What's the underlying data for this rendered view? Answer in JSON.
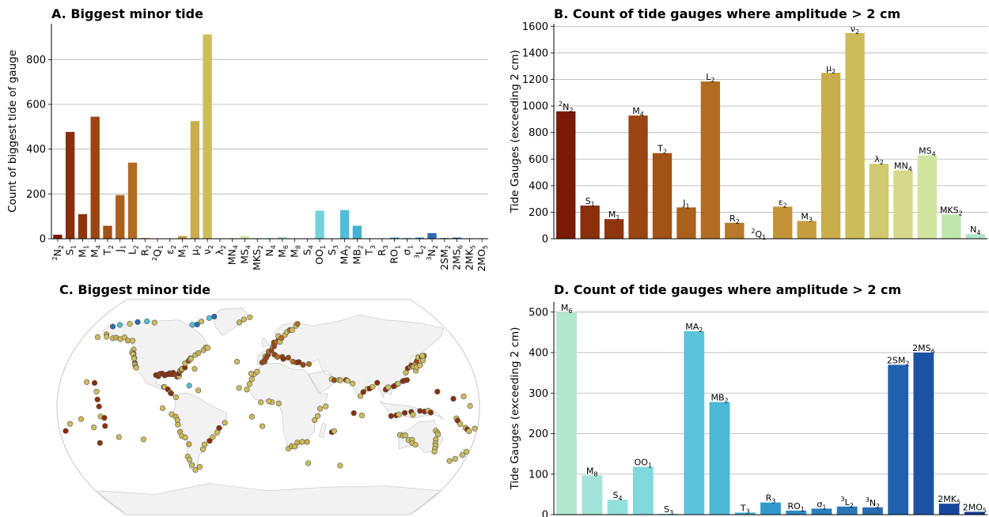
{
  "panels": {
    "A": {
      "title": "A. Biggest minor tide"
    },
    "B": {
      "title": "B. Count of tide gauges where amplitude > 2 cm"
    },
    "C": {
      "title": "C. Biggest minor tide"
    },
    "D": {
      "title": "D. Count of tide gauges where amplitude > 2 cm"
    }
  },
  "chart_data": [
    {
      "id": "A",
      "type": "bar",
      "title": "A. Biggest minor tide",
      "xlabel": "",
      "ylabel": "Count of biggest tide of gauge",
      "ylim": [
        0,
        960
      ],
      "yticks": [
        0,
        200,
        400,
        600,
        800
      ],
      "grid": "y",
      "categories": [
        {
          "base": "N",
          "sub": "2",
          "sup": "2"
        },
        {
          "base": "S",
          "sub": "1"
        },
        {
          "base": "M",
          "sub": "1"
        },
        {
          "base": "M",
          "sub": "4"
        },
        {
          "base": "T",
          "sub": "2"
        },
        {
          "base": "J",
          "sub": "1"
        },
        {
          "base": "L",
          "sub": "2"
        },
        {
          "base": "R",
          "sub": "2"
        },
        {
          "base": "Q",
          "sub": "1",
          "sup": "2"
        },
        {
          "base": "ε",
          "sub": "2"
        },
        {
          "base": "M",
          "sub": "3"
        },
        {
          "base": "μ",
          "sub": "2"
        },
        {
          "base": "ν",
          "sub": "2"
        },
        {
          "base": "λ",
          "sub": "2"
        },
        {
          "base": "MN",
          "sub": "4"
        },
        {
          "base": "MS",
          "sub": "4"
        },
        {
          "base": "MKS",
          "sub": "2"
        },
        {
          "base": "N",
          "sub": "4"
        },
        {
          "base": "M",
          "sub": "6"
        },
        {
          "base": "M",
          "sub": "8"
        },
        {
          "base": "S",
          "sub": "4"
        },
        {
          "base": "OO",
          "sub": "1"
        },
        {
          "base": "S",
          "sub": "3"
        },
        {
          "base": "MA",
          "sub": "2"
        },
        {
          "base": "MB",
          "sub": "2"
        },
        {
          "base": "T",
          "sub": "3"
        },
        {
          "base": "R",
          "sub": "3"
        },
        {
          "base": "RO",
          "sub": "1"
        },
        {
          "base": "σ",
          "sub": "1"
        },
        {
          "base": "L",
          "sub": "2",
          "sup": "3"
        },
        {
          "base": "N",
          "sub": "2",
          "sup": "3"
        },
        {
          "base": "2SM",
          "sub": "2"
        },
        {
          "base": "2MS",
          "sub": "6"
        },
        {
          "base": "2MK",
          "sub": "5"
        },
        {
          "base": "2MO",
          "sub": "5"
        }
      ],
      "values": [
        18,
        477,
        110,
        545,
        58,
        195,
        340,
        3,
        0,
        0,
        12,
        525,
        912,
        2,
        3,
        12,
        3,
        3,
        8,
        2,
        2,
        125,
        0,
        128,
        58,
        2,
        2,
        5,
        3,
        5,
        25,
        3,
        5,
        2,
        2
      ],
      "colors": [
        "#7a1a08",
        "#8a2e0c",
        "#8f350e",
        "#9b4512",
        "#a35216",
        "#ab611c",
        "#b06c22",
        "#b7782a",
        "#bc8430",
        "#c29237",
        "#c69c40",
        "#c9ac4c",
        "#ccbc5a",
        "#d1c870",
        "#d6d788",
        "#d0e4a0",
        "#c0e6b0",
        "#b0e6c8",
        "#a6e4d6",
        "#96dedc",
        "#85dadd",
        "#72d2dd",
        "#62c8dc",
        "#52bdd8",
        "#44b0d4",
        "#38a2cf",
        "#3096ca",
        "#2a88c2",
        "#2a7fbe",
        "#2a76b8",
        "#2a6cb3",
        "#2a62ae",
        "#1f56a6",
        "#1a4b9f",
        "#173f98"
      ]
    },
    {
      "id": "B",
      "type": "bar",
      "title": "B. Count of tide gauges where amplitude > 2 cm",
      "xlabel": "",
      "ylabel": "Tide Gauges (exceeding 2 cm)",
      "ylim": [
        0,
        1620
      ],
      "yticks": [
        0,
        200,
        400,
        600,
        800,
        1000,
        1200,
        1400,
        1600
      ],
      "grid": "y",
      "categories": [
        {
          "base": "N",
          "sub": "2",
          "sup": "2"
        },
        {
          "base": "S",
          "sub": "1"
        },
        {
          "base": "M",
          "sub": "1"
        },
        {
          "base": "M",
          "sub": "4"
        },
        {
          "base": "T",
          "sub": "2"
        },
        {
          "base": "J",
          "sub": "1"
        },
        {
          "base": "L",
          "sub": "2"
        },
        {
          "base": "R",
          "sub": "2"
        },
        {
          "base": "Q",
          "sub": "1",
          "sup": "2"
        },
        {
          "base": "ε",
          "sub": "2"
        },
        {
          "base": "M",
          "sub": "3"
        },
        {
          "base": "μ",
          "sub": "2"
        },
        {
          "base": "ν",
          "sub": "2"
        },
        {
          "base": "λ",
          "sub": "2"
        },
        {
          "base": "MN",
          "sub": "4"
        },
        {
          "base": "MS",
          "sub": "4"
        },
        {
          "base": "MKS",
          "sub": "2"
        },
        {
          "base": "N",
          "sub": "4"
        }
      ],
      "values": [
        960,
        250,
        148,
        928,
        645,
        236,
        1185,
        120,
        0,
        242,
        134,
        1250,
        1550,
        565,
        515,
        628,
        183,
        35
      ],
      "colors": [
        "#7a1a08",
        "#8a2e0c",
        "#8f350e",
        "#9b4512",
        "#a35216",
        "#ab611c",
        "#b06c22",
        "#b7782a",
        "#bc8430",
        "#c29237",
        "#c69c40",
        "#c9ac4c",
        "#ccbc5a",
        "#d1c870",
        "#d6d788",
        "#d0e4a0",
        "#c0e6b0",
        "#b0e6c8"
      ]
    },
    {
      "id": "D",
      "type": "bar",
      "title": "D. Count of tide gauges where amplitude > 2 cm",
      "xlabel": "",
      "ylabel": "Tide Gauges (exceeding 2 cm)",
      "ylim": [
        0,
        525
      ],
      "yticks": [
        0,
        100,
        200,
        300,
        400,
        500
      ],
      "grid": "y",
      "categories": [
        {
          "base": "M",
          "sub": "6"
        },
        {
          "base": "M",
          "sub": "8"
        },
        {
          "base": "S",
          "sub": "4"
        },
        {
          "base": "OO",
          "sub": "1"
        },
        {
          "base": "S",
          "sub": "3"
        },
        {
          "base": "MA",
          "sub": "2"
        },
        {
          "base": "MB",
          "sub": "2"
        },
        {
          "base": "T",
          "sub": "3"
        },
        {
          "base": "R",
          "sub": "3"
        },
        {
          "base": "RO",
          "sub": "1"
        },
        {
          "base": "σ",
          "sub": "1"
        },
        {
          "base": "L",
          "sub": "2",
          "sup": "3"
        },
        {
          "base": "N",
          "sub": "2",
          "sup": "3"
        },
        {
          "base": "2SM",
          "sub": "2"
        },
        {
          "base": "2MS",
          "sub": "6"
        },
        {
          "base": "2MK",
          "sub": "5"
        },
        {
          "base": "2MO",
          "sub": "5"
        }
      ],
      "values": [
        500,
        97,
        37,
        118,
        2,
        453,
        278,
        5,
        30,
        10,
        15,
        20,
        18,
        370,
        400,
        27,
        7
      ],
      "colors": [
        "#b1e8cf",
        "#a3e3d7",
        "#93dfdb",
        "#80d8dd",
        "#6fcfdc",
        "#5bc4da",
        "#4bb8d6",
        "#3ea9d1",
        "#3399cb",
        "#2c8bc4",
        "#2a80bf",
        "#2a76b8",
        "#2a6bb2",
        "#2160ac",
        "#1c52a4",
        "#18469c",
        "#153a94"
      ]
    }
  ],
  "map": {
    "type": "scatter-map",
    "title": "C. Biggest minor tide",
    "colors": {
      "ocean": "#ffffff",
      "land": "#f2f2f2",
      "coast": "#c8c8c8",
      "point_edge": "#555555"
    }
  }
}
